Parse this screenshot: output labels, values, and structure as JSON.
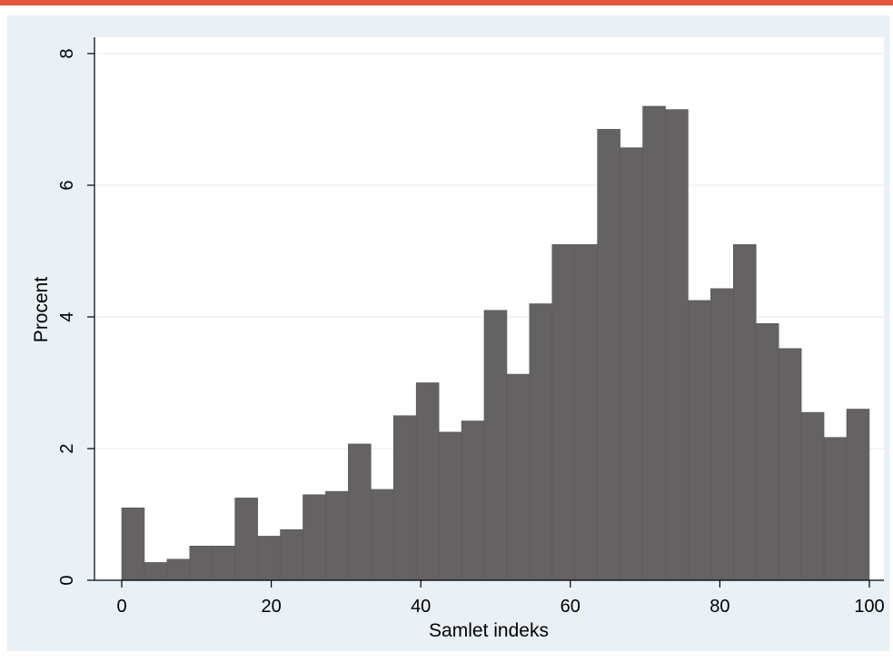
{
  "colors": {
    "accent_rule": "#e2553f",
    "outer_background": "#e9f1f6",
    "plot_background": "#ffffff",
    "bar_fill": "#656263",
    "bar_edge": "#5a5758",
    "grid": "#e6eff4"
  },
  "chart_data": {
    "type": "bar",
    "title": "",
    "xlabel": "Samlet indeks",
    "ylabel": "Procent",
    "xlim": [
      0,
      100
    ],
    "ylim": [
      0,
      8
    ],
    "xticks": [
      0,
      20,
      40,
      60,
      80,
      100
    ],
    "yticks": [
      0,
      2,
      4,
      6,
      8
    ],
    "xtick_labels": [
      "0",
      "20",
      "40",
      "60",
      "80",
      "100"
    ],
    "ytick_labels": [
      "0",
      "2",
      "4",
      "6",
      "8"
    ],
    "grid": true,
    "bin_width": 3.03,
    "bin_start": 0,
    "values": [
      1.1,
      0.27,
      0.32,
      0.52,
      0.52,
      1.25,
      0.67,
      0.77,
      1.3,
      1.35,
      2.07,
      1.38,
      2.5,
      3.0,
      2.25,
      2.42,
      4.1,
      3.13,
      4.2,
      5.1,
      5.1,
      6.85,
      6.57,
      7.2,
      7.15,
      4.25,
      4.43,
      5.1,
      3.9,
      3.52,
      2.55,
      2.17,
      2.6
    ]
  }
}
